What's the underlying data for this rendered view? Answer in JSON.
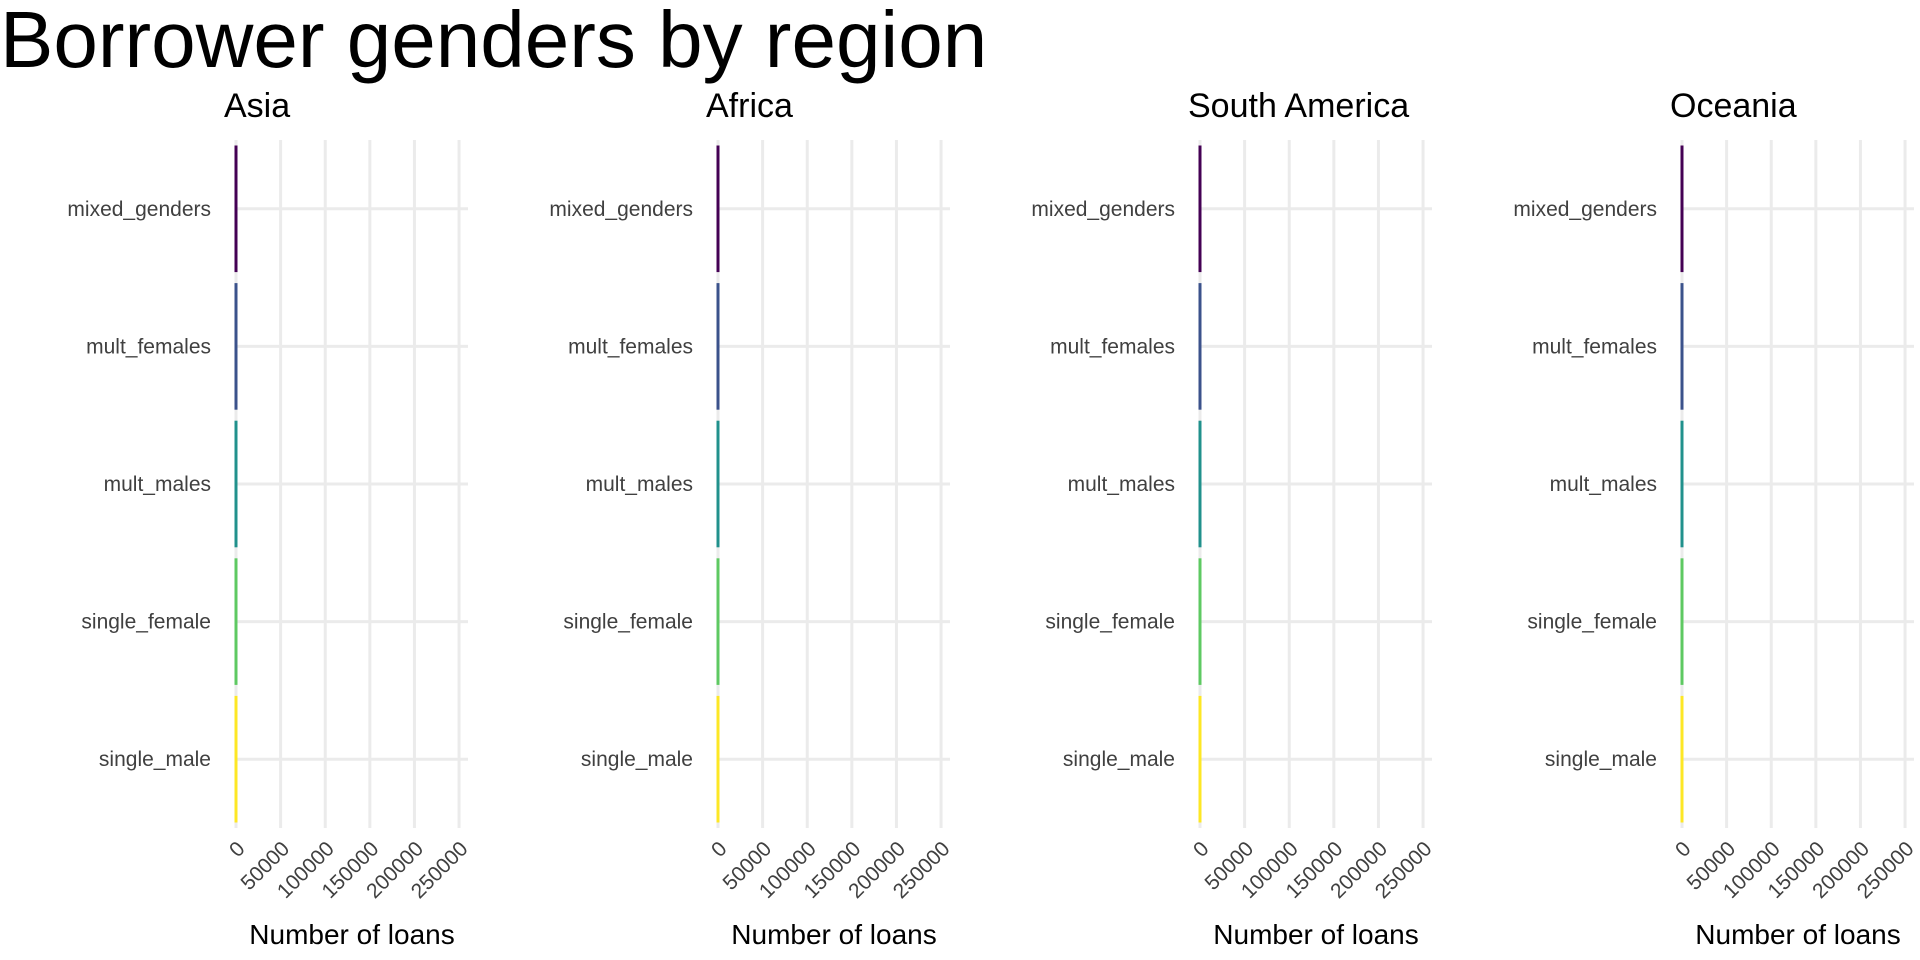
{
  "chart_data": {
    "type": "bar",
    "orientation": "horizontal",
    "title": "Borrower genders by region",
    "xlabel": "Number of loans",
    "ylabel": "",
    "xlim": [
      0,
      260000
    ],
    "x_ticks": [
      0,
      50000,
      100000,
      150000,
      200000,
      250000
    ],
    "grid": true,
    "legend": "none",
    "categories": [
      "single_male",
      "single_female",
      "mult_males",
      "mult_females",
      "mixed_genders"
    ],
    "category_colors": {
      "single_male": "#fde725",
      "single_female": "#5ec962",
      "mult_males": "#21918c",
      "mult_females": "#3b528b",
      "mixed_genders": "#440154"
    },
    "panels": [
      {
        "title": "Asia",
        "values": [
          0,
          0,
          0,
          0,
          0
        ]
      },
      {
        "title": "Africa",
        "values": [
          0,
          0,
          0,
          0,
          0
        ]
      },
      {
        "title": "South America",
        "values": [
          0,
          0,
          0,
          0,
          0
        ]
      },
      {
        "title": "Oceania",
        "values": [
          0,
          0,
          0,
          0,
          0
        ]
      }
    ]
  }
}
